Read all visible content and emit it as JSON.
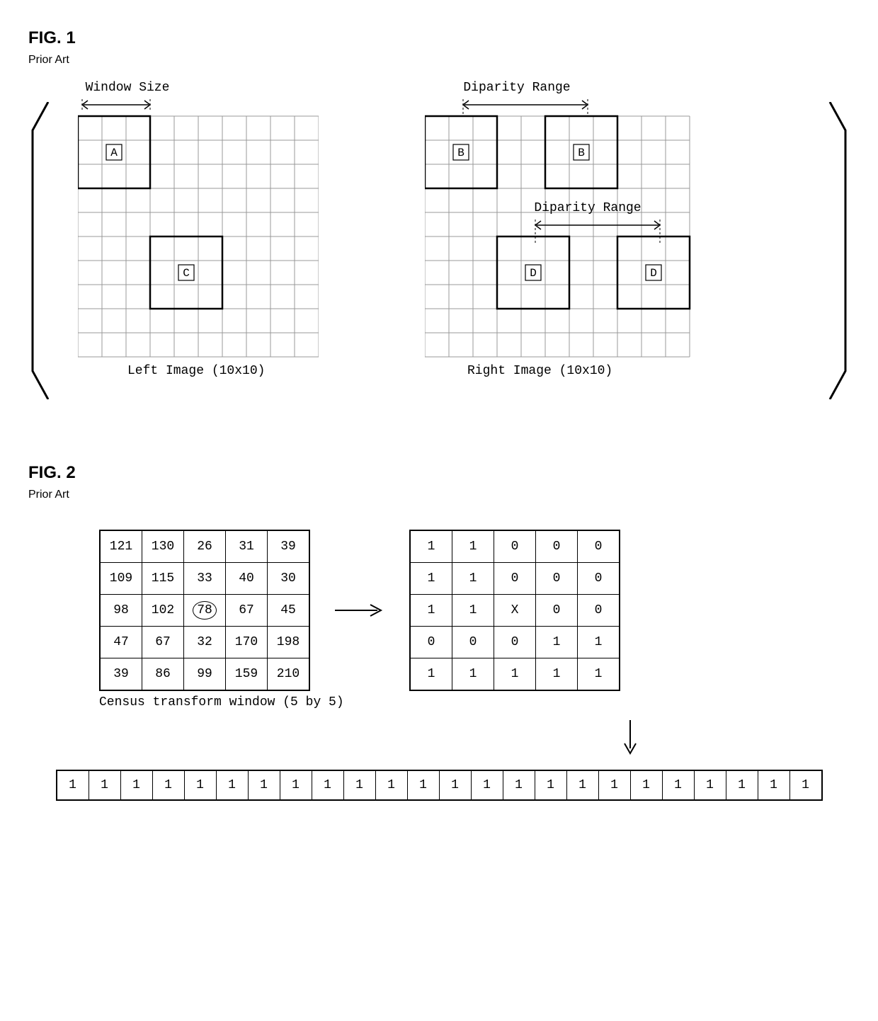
{
  "fig1": {
    "title": "FIG. 1",
    "subtitle": "Prior Art",
    "windowSizeLabel": "Window Size",
    "disparityRangeLabel": "Diparity Range",
    "leftCaption": "Left Image (10x10)",
    "rightCaption": "Right Image (10x10)",
    "gridSize": 10,
    "cellPx": 34,
    "leftGrid": {
      "windows": [
        {
          "row": 0,
          "col": 0,
          "size": 3,
          "label": "A",
          "labelRow": 1,
          "labelCol": 1
        },
        {
          "row": 5,
          "col": 3,
          "size": 3,
          "label": "C",
          "labelRow": 6,
          "labelCol": 4
        }
      ]
    },
    "rightGrid": {
      "windows": [
        {
          "row": 0,
          "col": 0,
          "size": 3,
          "label": "B",
          "labelRow": 1,
          "labelCol": 1
        },
        {
          "row": 0,
          "col": 5,
          "size": 3,
          "label": "B",
          "labelRow": 1,
          "labelCol": 6
        },
        {
          "row": 5,
          "col": 3,
          "size": 3,
          "label": "D",
          "labelRow": 6,
          "labelCol": 4
        },
        {
          "row": 5,
          "col": 8,
          "size": 3,
          "label": "D",
          "labelRow": 6,
          "labelCol": 9
        }
      ],
      "disparityArrows": [
        {
          "fromCol": 1,
          "toCol": 6,
          "rowAbove": 0,
          "labelAbove": true
        },
        {
          "fromCol": 4,
          "toCol": 9,
          "rowAbove": 5,
          "labelAbove": true,
          "labelText": "Diparity Range"
        }
      ]
    }
  },
  "fig2": {
    "title": "FIG. 2",
    "subtitle": "Prior Art",
    "leftTable": [
      [
        121,
        130,
        26,
        31,
        39
      ],
      [
        109,
        115,
        33,
        40,
        30
      ],
      [
        98,
        102,
        78,
        67,
        45
      ],
      [
        47,
        67,
        32,
        170,
        198
      ],
      [
        39,
        86,
        99,
        159,
        210
      ]
    ],
    "centerCell": {
      "row": 2,
      "col": 2
    },
    "leftCaption": "Census transform window (5 by 5)",
    "rightTable": [
      [
        "1",
        "1",
        "0",
        "0",
        "0"
      ],
      [
        "1",
        "1",
        "0",
        "0",
        "0"
      ],
      [
        "1",
        "1",
        "X",
        "0",
        "0"
      ],
      [
        "0",
        "0",
        "0",
        "1",
        "1"
      ],
      [
        "1",
        "1",
        "1",
        "1",
        "1"
      ]
    ],
    "bitVector": [
      "1",
      "1",
      "1",
      "1",
      "1",
      "1",
      "1",
      "1",
      "1",
      "1",
      "1",
      "1",
      "1",
      "1",
      "1",
      "1",
      "1",
      "1",
      "1",
      "1",
      "1",
      "1",
      "1",
      "1"
    ]
  },
  "colors": {
    "stroke": "#000000",
    "gridLight": "#888888",
    "bg": "#ffffff"
  }
}
